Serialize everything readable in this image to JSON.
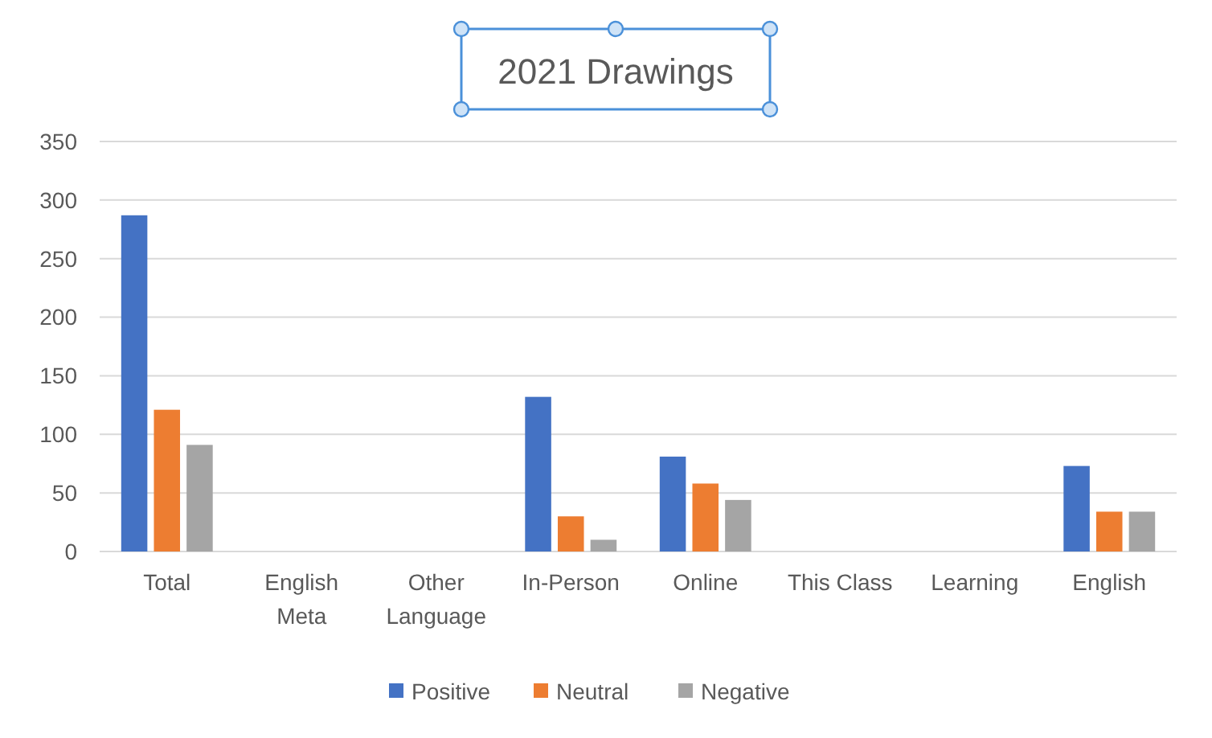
{
  "chart_data": {
    "type": "bar",
    "title": "2021 Drawings",
    "categories": [
      "Total",
      "English Meta",
      "Other Language",
      "In-Person",
      "Online",
      "This Class",
      "Learning",
      "English"
    ],
    "series": [
      {
        "name": "Positive",
        "color": "#4472c4",
        "values": [
          287,
          0,
          0,
          132,
          81,
          0,
          0,
          73
        ]
      },
      {
        "name": "Neutral",
        "color": "#ed7d31",
        "values": [
          121,
          0,
          0,
          30,
          58,
          0,
          0,
          34
        ]
      },
      {
        "name": "Negative",
        "color": "#a5a5a5",
        "values": [
          91,
          0,
          0,
          10,
          44,
          0,
          0,
          34
        ]
      }
    ],
    "ylim": [
      0,
      350
    ],
    "yticks": [
      0,
      50,
      100,
      150,
      200,
      250,
      300,
      350
    ],
    "grid": "y",
    "legend": "bottom"
  }
}
